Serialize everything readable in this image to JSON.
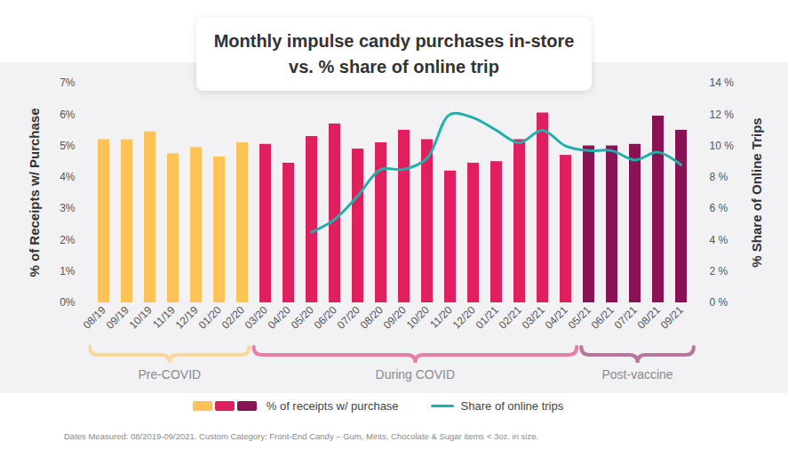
{
  "chart_data": {
    "type": "bar",
    "title": "Monthly impulse candy purchases in-store vs. % share of online trip",
    "categories": [
      "08/19",
      "09/19",
      "10/19",
      "11/19",
      "12/19",
      "01/20",
      "02/20",
      "03/20",
      "04/20",
      "05/20",
      "06/20",
      "07/20",
      "08/20",
      "09/20",
      "10/20",
      "11/20",
      "12/20",
      "01/21",
      "02/21",
      "03/21",
      "04/21",
      "05/21",
      "06/21",
      "07/21",
      "08/21",
      "09/21"
    ],
    "series": [
      {
        "name": "% of receipts w/ purchase",
        "type": "bar",
        "colors": [
          "#fdc356",
          "#fdc356",
          "#fdc356",
          "#fdc356",
          "#fdc356",
          "#fdc356",
          "#fdc356",
          "#e01f5f",
          "#e01f5f",
          "#e01f5f",
          "#e01f5f",
          "#e01f5f",
          "#e01f5f",
          "#e01f5f",
          "#e01f5f",
          "#e01f5f",
          "#e01f5f",
          "#e01f5f",
          "#e01f5f",
          "#e01f5f",
          "#e01f5f",
          "#8a1154",
          "#8a1154",
          "#8a1154",
          "#8a1154",
          "#8a1154"
        ],
        "values": [
          5.2,
          5.2,
          5.45,
          4.75,
          4.95,
          4.65,
          5.1,
          5.05,
          4.45,
          5.3,
          5.7,
          4.9,
          5.1,
          5.5,
          5.2,
          4.2,
          4.45,
          4.5,
          5.2,
          6.05,
          4.7,
          5.0,
          5.0,
          5.05,
          5.95,
          5.5
        ]
      },
      {
        "name": "Share of online trips",
        "type": "line",
        "axis": "y2",
        "color": "#1fb1a9",
        "values": [
          null,
          null,
          null,
          null,
          null,
          null,
          null,
          null,
          null,
          4.5,
          5.3,
          6.8,
          8.5,
          8.5,
          9.2,
          12.0,
          11.8,
          11.0,
          10.2,
          11.0,
          10.0,
          9.7,
          9.7,
          9.1,
          9.6,
          8.8
        ]
      }
    ],
    "ylim": [
      0,
      7
    ],
    "yticks": [
      {
        "value": 0,
        "label": "0%"
      },
      {
        "value": 1,
        "label": "1%"
      },
      {
        "value": 2,
        "label": "2%"
      },
      {
        "value": 3,
        "label": "3%"
      },
      {
        "value": 4,
        "label": "4%"
      },
      {
        "value": 5,
        "label": "5%"
      },
      {
        "value": 6,
        "label": "6%"
      },
      {
        "value": 7,
        "label": "7%"
      }
    ],
    "y2lim": [
      0,
      14
    ],
    "y2ticks": [
      {
        "value": 0,
        "label": "0 %"
      },
      {
        "value": 2,
        "label": "2 %"
      },
      {
        "value": 4,
        "label": "4 %"
      },
      {
        "value": 6,
        "label": "6 %"
      },
      {
        "value": 8,
        "label": "8 %"
      },
      {
        "value": 10,
        "label": "10 %"
      },
      {
        "value": 12,
        "label": "12 %"
      },
      {
        "value": 14,
        "label": "14 %"
      }
    ],
    "y_label": "% of Receipts w/ Purchase",
    "y2_label": "% Share of Online Trips",
    "annotations": [
      {
        "text": "Pre-COVID",
        "from": "08/19",
        "to": "02/20",
        "color": "#fdc356"
      },
      {
        "text": "During COVID",
        "from": "03/20",
        "to": "04/21",
        "color": "#e01f5f"
      },
      {
        "text": "Post-vaccine",
        "from": "05/21",
        "to": "09/21",
        "color": "#8a1154"
      }
    ],
    "caption": "Dates Measured: 08/2019-09/2021.  Custom Category: Front-End Candy – Gum, Mints, Chocolate & Sugar items < 3oz. in size.",
    "legend": "bottom",
    "grid": false
  }
}
